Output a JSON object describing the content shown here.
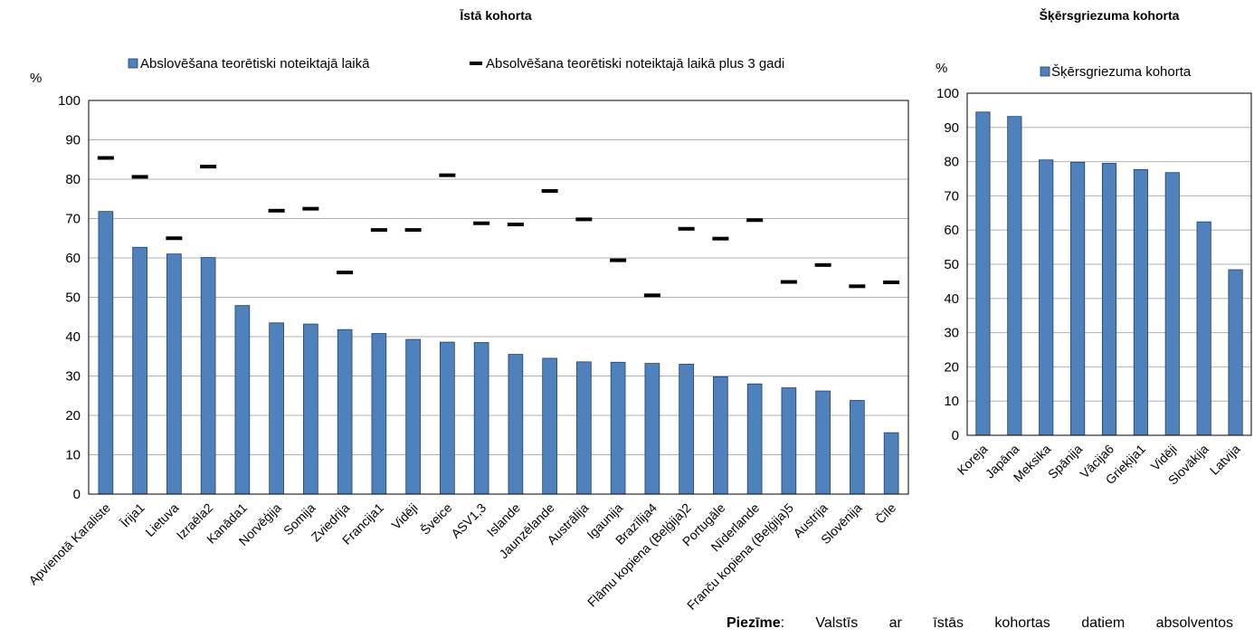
{
  "chart_data": [
    {
      "type": "bar",
      "title": "Īstā kohorta",
      "ylabel": "%",
      "ylim": [
        0,
        100
      ],
      "yticks": [
        0,
        10,
        20,
        30,
        40,
        50,
        60,
        70,
        80,
        90,
        100
      ],
      "grid": true,
      "legend_position": "top",
      "categories": [
        "Apvienotā Karaliste",
        "Īrija1",
        "Lietuva",
        "Izraēla2",
        "Kanāda1",
        "Norvēģija",
        "Somija",
        "Zviedrija",
        "Francija1",
        "Vidēji",
        "Šveice",
        "ASV1,3",
        "Islande",
        "Jaunzēlande",
        "Austrālija",
        "Igaunija",
        "Brazīlija4",
        "Flāmu kopiena (Beļģija)2",
        "Portugāle",
        "Nīderlande",
        "Franču kopiena (Beļģija)5",
        "Austrija",
        "Slovēnija",
        "Čīle"
      ],
      "series": [
        {
          "name": "Abslovēšana teorētiski noteiktajā laikā",
          "kind": "bar",
          "color": "#4f81bd",
          "values": [
            71.8,
            62.7,
            61.0,
            60.1,
            47.9,
            43.5,
            43.2,
            41.8,
            40.8,
            39.3,
            38.6,
            38.5,
            35.5,
            34.5,
            33.6,
            33.5,
            33.2,
            33.0,
            29.8,
            28.0,
            27.0,
            26.2,
            23.8,
            15.6
          ]
        },
        {
          "name": "Absolvēšana teorētiski noteiktajā laikā plus 3 gadi",
          "kind": "marker",
          "color": "#000000",
          "values": [
            85.4,
            80.6,
            65.0,
            83.2,
            null,
            72.0,
            72.5,
            56.3,
            67.1,
            67.1,
            81.0,
            68.8,
            68.5,
            77.0,
            69.8,
            59.4,
            50.5,
            67.4,
            64.9,
            69.6,
            53.9,
            58.2,
            52.8,
            53.8
          ]
        }
      ]
    },
    {
      "type": "bar",
      "title": "Šķērsgriezuma kohorta",
      "ylabel": "%",
      "ylim": [
        0,
        100
      ],
      "yticks": [
        0,
        10,
        20,
        30,
        40,
        50,
        60,
        70,
        80,
        90,
        100
      ],
      "grid": true,
      "legend_position": "top",
      "categories": [
        "Koreja",
        "Japāna",
        "Meksika",
        "Spānija",
        "Vācija6",
        "Grieķija1",
        "Vidēji",
        "Slovākija",
        "Latvija"
      ],
      "series": [
        {
          "name": "Šķērsgriezuma kohorta",
          "kind": "bar",
          "color": "#4f81bd",
          "values": [
            94.5,
            93.2,
            80.5,
            79.8,
            79.5,
            77.7,
            76.8,
            62.4,
            48.4
          ]
        }
      ]
    }
  ],
  "note": {
    "label": "Piezīme",
    "text": ": Valstīs ar īstās kohortas datiem absolventos"
  }
}
